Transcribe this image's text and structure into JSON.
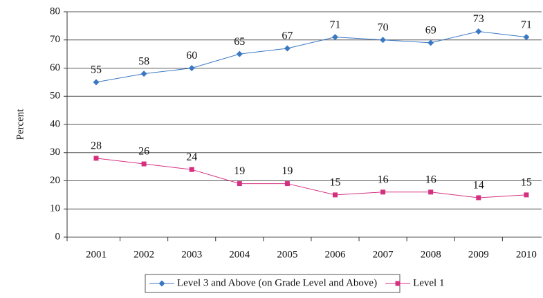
{
  "chart_data": {
    "type": "line",
    "y_label": "Percent",
    "categories": [
      "2001",
      "2002",
      "2003",
      "2004",
      "2005",
      "2006",
      "2007",
      "2008",
      "2009",
      "2010"
    ],
    "series": [
      {
        "name": "Level 3 and Above (on Grade Level and Above)",
        "color": "#3b78c3",
        "marker": "diamond",
        "values": [
          55,
          58,
          60,
          65,
          67,
          71,
          70,
          69,
          73,
          71
        ]
      },
      {
        "name": "Level 1",
        "color": "#d4307f",
        "marker": "square",
        "values": [
          28,
          26,
          24,
          19,
          19,
          15,
          16,
          16,
          14,
          15
        ]
      }
    ],
    "ylim": [
      0,
      80
    ],
    "yticks": [
      0,
      10,
      20,
      30,
      40,
      50,
      60,
      70,
      80
    ],
    "grid": true,
    "legend": "bottom"
  }
}
